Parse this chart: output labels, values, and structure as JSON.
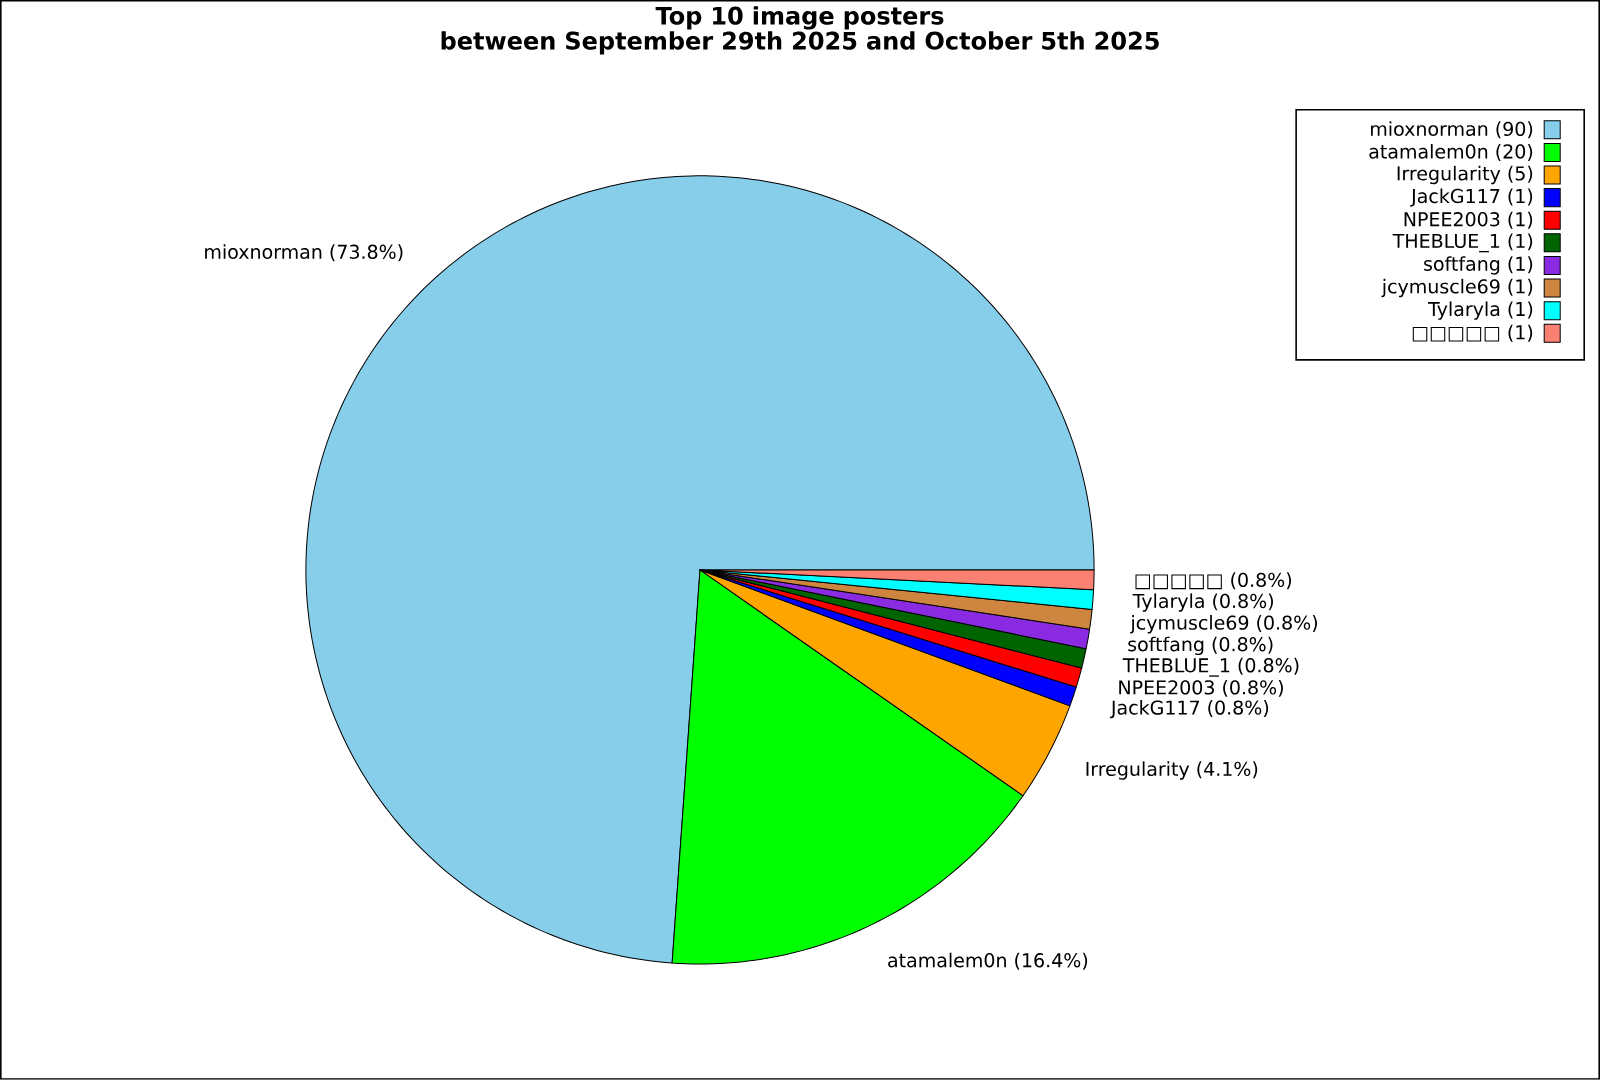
{
  "chart_data": {
    "type": "pie",
    "title": "Top 10 image posters\nbetween September 29th 2025 and October 5th 2025",
    "categories": [
      "mioxnorman (90)",
      "atamalem0n (20)",
      "Irregularity (5)",
      "JackG117 (1)",
      "NPEE2003 (1)",
      "THEBLUE_1 (1)",
      "softfang (1)",
      "jcymuscle69 (1)",
      "Tylaryla (1)",
      "□□□□□ (1)"
    ],
    "values": [
      73.8,
      16.4,
      4.1,
      0.8,
      0.8,
      0.8,
      0.8,
      0.8,
      0.8,
      0.8
    ],
    "value_labels": [
      "mioxnorman (73.8%)",
      "atamalem0n (16.4%)",
      "Irregularity (4.1%)",
      "JackG117 (0.8%)",
      "NPEE2003 (0.8%)",
      "THEBLUE_1 (0.8%)",
      "softfang (0.8%)",
      "jcymuscle69 (0.8%)",
      "Tylaryla (0.8%)",
      "□□□□□ (0.8%)"
    ],
    "colors": [
      "#87ceeb",
      "#00ff00",
      "#ffa500",
      "#0000ff",
      "#ff0000",
      "#006400",
      "#8a2be2",
      "#cd853f",
      "#00ffff",
      "#fa8072"
    ],
    "legend": "top right"
  }
}
